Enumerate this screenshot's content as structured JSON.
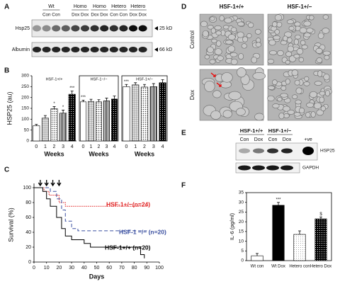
{
  "panel_labels": [
    "A",
    "B",
    "C",
    "D",
    "E",
    "F"
  ],
  "panel_a": {
    "groups": [
      "Wt",
      "Homo",
      "Homo",
      "Hetero",
      "Hetero"
    ],
    "lanes": [
      "Con Con",
      "Dox Dox",
      "Dox Dox",
      "Con Con",
      "Dox Dox"
    ],
    "rows": [
      "Hsp25",
      "Albumin"
    ],
    "markers": [
      "25 kD",
      "66 kD"
    ]
  },
  "panel_d": {
    "columns": [
      "HSF-1+/+",
      "HSF-1+/−"
    ],
    "rows": [
      "Control",
      "Dox"
    ]
  },
  "panel_e": {
    "columns": [
      "HSF-1+/+",
      "HSF-1+/−"
    ],
    "lanes": [
      "Con",
      "Dox",
      "Con",
      "Dox",
      "+ve"
    ],
    "rows": [
      "HSP25",
      "GAPDH"
    ]
  },
  "chart_data": [
    {
      "type": "bar",
      "title": "HSF-1+/+",
      "categories": [
        "0",
        "1",
        "2",
        "3",
        "4"
      ],
      "values": [
        70,
        105,
        148,
        128,
        215
      ],
      "errors": [
        6,
        12,
        10,
        14,
        15
      ],
      "annotations": [
        null,
        null,
        "*",
        "*",
        "***"
      ],
      "xlabel": "Weeks",
      "ylabel": "HSP25 (au)",
      "ylim": [
        0,
        300
      ],
      "yticks": [
        0,
        50,
        100,
        150,
        200,
        250,
        300
      ]
    },
    {
      "type": "bar",
      "title": "HSF-1−/−",
      "categories": [
        "0",
        "1",
        "2",
        "3",
        "4"
      ],
      "values": [
        180,
        182,
        180,
        185,
        193
      ],
      "errors": [
        8,
        10,
        10,
        12,
        14
      ],
      "annotations": [
        "***",
        null,
        null,
        null,
        null
      ],
      "xlabel": "Weeks",
      "ylim": [
        0,
        300
      ]
    },
    {
      "type": "bar",
      "title": "HSF-1+/−",
      "categories": [
        "0",
        "1",
        "2",
        "3",
        "4"
      ],
      "values": [
        250,
        258,
        248,
        250,
        268
      ],
      "errors": [
        10,
        10,
        12,
        14,
        14
      ],
      "annotations": [
        "***",
        null,
        null,
        null,
        null
      ],
      "xlabel": "Weeks",
      "ylim": [
        0,
        300
      ]
    },
    {
      "type": "line",
      "xlabel": "Days",
      "ylabel": "Survival (%)",
      "xlim": [
        0,
        100
      ],
      "xticks": [
        0,
        10,
        20,
        30,
        40,
        50,
        60,
        70,
        80,
        90,
        100
      ],
      "ylim": [
        0,
        100
      ],
      "yticks": [
        0,
        20,
        40,
        60,
        80,
        100
      ],
      "arrows_x": [
        5,
        10,
        15,
        20
      ],
      "series": [
        {
          "name": "HSF-1+/−(n=24)",
          "color": "#e02020",
          "linestyle": "dotted",
          "x": [
            0,
            8,
            8,
            12,
            12,
            20,
            20,
            25,
            25,
            90
          ],
          "values": [
            100,
            100,
            95,
            95,
            90,
            90,
            80,
            80,
            75,
            75
          ]
        },
        {
          "name": "HSF-1 −/− (n=20)",
          "color": "#3a4fa0",
          "linestyle": "dashed",
          "x": [
            0,
            13,
            13,
            18,
            18,
            22,
            22,
            25,
            25,
            30,
            30,
            35,
            35,
            90
          ],
          "values": [
            100,
            100,
            95,
            95,
            85,
            85,
            70,
            70,
            55,
            55,
            45,
            45,
            42,
            42
          ]
        },
        {
          "name": "HSF-1+/+ (n=20)",
          "color": "#000000",
          "linestyle": "solid",
          "x": [
            0,
            7,
            7,
            10,
            10,
            13,
            13,
            18,
            18,
            22,
            22,
            25,
            25,
            30,
            30,
            40,
            40,
            45,
            45,
            85,
            85,
            88,
            88
          ],
          "values": [
            100,
            100,
            95,
            95,
            85,
            85,
            75,
            75,
            60,
            60,
            45,
            45,
            35,
            35,
            30,
            30,
            25,
            25,
            20,
            20,
            10,
            10,
            5
          ]
        }
      ]
    },
    {
      "type": "bar",
      "categories": [
        "Wt con",
        "Wt Dox",
        "Hetero con",
        "Hetero Dox"
      ],
      "values": [
        2.5,
        28.5,
        13.5,
        21.5
      ],
      "errors": [
        1.2,
        1.5,
        1.8,
        1
      ],
      "annotations": [
        null,
        "***",
        null,
        "$"
      ],
      "ylabel": "IL-6 (pg/ml)",
      "ylim": [
        0,
        35
      ],
      "yticks": [
        0,
        5,
        10,
        15,
        20,
        25,
        30,
        35
      ]
    }
  ]
}
